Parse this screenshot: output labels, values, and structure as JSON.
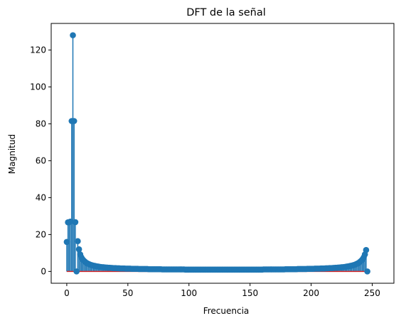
{
  "chart_data": {
    "type": "stem",
    "title": "DFT de la señal",
    "xlabel": "Frecuencia",
    "ylabel": "Magnitud",
    "xlim": [
      -12.75,
      267.75
    ],
    "ylim": [
      -6.4,
      134.4
    ],
    "xticks": [
      0,
      50,
      100,
      150,
      200,
      250
    ],
    "yticks": [
      0,
      20,
      40,
      60,
      80,
      100,
      120
    ],
    "grid": false,
    "legend": "none",
    "stem_color": "#1f77b4",
    "baseline_color": "#d62728",
    "baseline_value": 0,
    "series": [
      {
        "name": "",
        "x_start": 0,
        "x_step": 1,
        "values": [
          16.0,
          26.6,
          26.7,
          27.0,
          81.5,
          128.0,
          81.5,
          26.7,
          0.0,
          16.4,
          12.0,
          9.2,
          7.6,
          6.5,
          5.8,
          5.2,
          4.7,
          4.3,
          4.0,
          3.7,
          3.5,
          3.3,
          3.1,
          3.0,
          2.8,
          2.7,
          2.6,
          2.5,
          2.4,
          2.3,
          2.3,
          2.2,
          2.1,
          2.1,
          2.0,
          2.0,
          1.9,
          1.9,
          1.8,
          1.8,
          1.8,
          1.7,
          1.7,
          1.7,
          1.6,
          1.6,
          1.6,
          1.6,
          1.5,
          1.5,
          1.5,
          1.5,
          1.5,
          1.4,
          1.4,
          1.4,
          1.4,
          1.4,
          1.4,
          1.3,
          1.3,
          1.3,
          1.3,
          1.3,
          1.3,
          1.3,
          1.3,
          1.2,
          1.2,
          1.2,
          1.2,
          1.2,
          1.2,
          1.2,
          1.2,
          1.2,
          1.2,
          1.2,
          1.1,
          1.1,
          1.1,
          1.1,
          1.1,
          1.1,
          1.1,
          1.1,
          1.1,
          1.1,
          1.1,
          1.1,
          1.1,
          1.1,
          1.1,
          1.1,
          1.1,
          1.1,
          1.1,
          1.0,
          1.0,
          1.0,
          1.0,
          1.0,
          1.0,
          1.0,
          1.0,
          1.0,
          1.0,
          1.0,
          1.0,
          1.0,
          1.0,
          1.0,
          1.0,
          1.0,
          1.0,
          1.0,
          1.0,
          1.0,
          1.0,
          1.0,
          1.0,
          1.0,
          1.0,
          1.0,
          1.0,
          1.0,
          1.0,
          1.0,
          1.0,
          1.0,
          1.0,
          1.0,
          1.0,
          1.0,
          1.0,
          1.0,
          1.0,
          1.0,
          1.0,
          1.0,
          1.0,
          1.0,
          1.0,
          1.0,
          1.0,
          1.0,
          1.0,
          1.0,
          1.0,
          1.0,
          1.0,
          1.0,
          1.0,
          1.0,
          1.0,
          1.0,
          1.0,
          1.0,
          1.0,
          1.0,
          1.0,
          1.1,
          1.1,
          1.1,
          1.1,
          1.1,
          1.1,
          1.1,
          1.1,
          1.1,
          1.1,
          1.1,
          1.1,
          1.1,
          1.1,
          1.1,
          1.1,
          1.1,
          1.1,
          1.2,
          1.2,
          1.2,
          1.2,
          1.2,
          1.2,
          1.2,
          1.2,
          1.2,
          1.2,
          1.3,
          1.3,
          1.3,
          1.3,
          1.3,
          1.3,
          1.3,
          1.3,
          1.4,
          1.4,
          1.4,
          1.4,
          1.4,
          1.4,
          1.5,
          1.5,
          1.5,
          1.5,
          1.5,
          1.6,
          1.6,
          1.6,
          1.6,
          1.7,
          1.7,
          1.7,
          1.8,
          1.8,
          1.8,
          1.9,
          1.9,
          2.0,
          2.0,
          2.1,
          2.1,
          2.2,
          2.3,
          2.3,
          2.4,
          2.5,
          2.6,
          2.7,
          2.8,
          3.0,
          3.1,
          3.3,
          3.5,
          3.7,
          4.0,
          4.3,
          4.7,
          5.2,
          5.8,
          6.5,
          7.6,
          9.2,
          11.6,
          0.0
        ]
      }
    ]
  }
}
